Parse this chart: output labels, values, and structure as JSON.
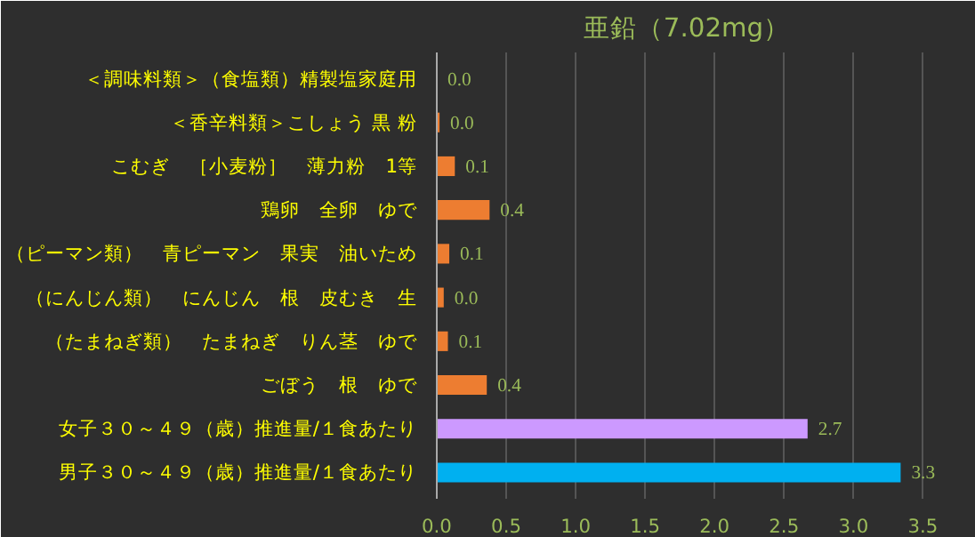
{
  "chart_data": {
    "type": "bar",
    "orientation": "horizontal",
    "title": "亜鉛（7.02mg）",
    "categories": [
      "＜調味料類＞（食塩類）精製塩家庭用",
      "＜香辛料類＞こしょう 黒 粉",
      "こむぎ　［小麦粉］　薄力粉　1等",
      "鶏卵　全卵　ゆで",
      "（ピーマン類）　青ピーマン　果実　油いため",
      "（にんじん類）　にんじん　根　皮むき　生",
      "（たまねぎ類）　たまねぎ　りん茎　ゆで",
      "ごぼう　根　ゆで",
      "女子３０～４９（歳）推進量/１食あたり",
      "男子３０～４９（歳）推進量/１食あたり"
    ],
    "values": [
      0.0,
      0.02,
      0.13,
      0.38,
      0.09,
      0.05,
      0.08,
      0.36,
      2.67,
      3.34
    ],
    "value_labels": [
      "0.0",
      "0.0",
      "0.1",
      "0.4",
      "0.1",
      "0.0",
      "0.1",
      "0.4",
      "2.7",
      "3.3"
    ],
    "colors": [
      "#ed7d31",
      "#ed7d31",
      "#ed7d31",
      "#ed7d31",
      "#ed7d31",
      "#ed7d31",
      "#ed7d31",
      "#ed7d31",
      "#cc99ff",
      "#00b0f0"
    ],
    "xlim": [
      0,
      3.6
    ],
    "xticks": [
      {
        "value": 0,
        "label": "0.0"
      },
      {
        "value": 0.5,
        "label": "0.5"
      },
      {
        "value": 1,
        "label": "1.0"
      },
      {
        "value": 1.5,
        "label": "1.5"
      },
      {
        "value": 2,
        "label": "2.0"
      },
      {
        "value": 2.5,
        "label": "2.5"
      },
      {
        "value": 3,
        "label": "3.0"
      },
      {
        "value": 3.5,
        "label": "3.5"
      }
    ],
    "grid": "x"
  }
}
